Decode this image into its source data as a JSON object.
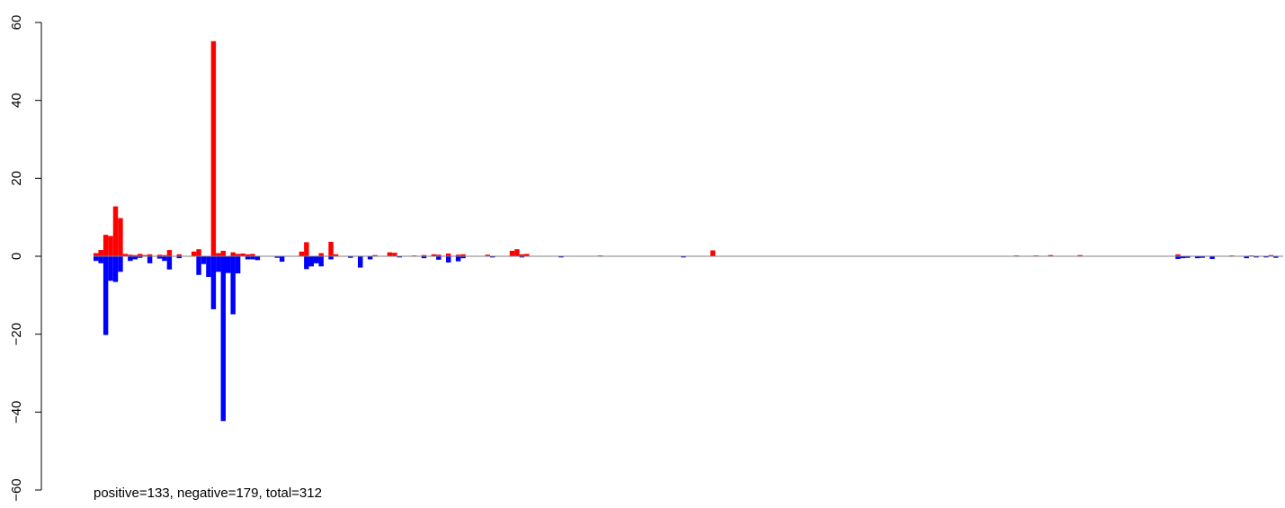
{
  "chart_data": {
    "type": "bar",
    "ylim": [
      -60,
      60
    ],
    "yticks": [
      -60,
      -40,
      -20,
      0,
      20,
      40,
      60
    ],
    "grid": false,
    "colors": {
      "positive": "#ff0000",
      "negative": "#0000ff",
      "baseline": "#808080",
      "axis": "#000000"
    },
    "positive_bars": [
      {
        "x": 1,
        "y": 0.8
      },
      {
        "x": 2,
        "y": 1.6
      },
      {
        "x": 3,
        "y": 5.5
      },
      {
        "x": 4,
        "y": 5.2
      },
      {
        "x": 5,
        "y": 12.8
      },
      {
        "x": 6,
        "y": 9.8
      },
      {
        "x": 7,
        "y": 0.6
      },
      {
        "x": 8,
        "y": 0.4
      },
      {
        "x": 9,
        "y": 0.3
      },
      {
        "x": 10,
        "y": 0.6
      },
      {
        "x": 11,
        "y": 0.3
      },
      {
        "x": 12,
        "y": 0.5
      },
      {
        "x": 14,
        "y": 0.4
      },
      {
        "x": 15,
        "y": 0.3
      },
      {
        "x": 16,
        "y": 1.6
      },
      {
        "x": 18,
        "y": 0.5
      },
      {
        "x": 21,
        "y": 1.2
      },
      {
        "x": 22,
        "y": 1.8
      },
      {
        "x": 25,
        "y": 55.2
      },
      {
        "x": 26,
        "y": 0.8
      },
      {
        "x": 27,
        "y": 1.4
      },
      {
        "x": 29,
        "y": 1.0
      },
      {
        "x": 30,
        "y": 0.6
      },
      {
        "x": 31,
        "y": 0.7
      },
      {
        "x": 32,
        "y": 0.5
      },
      {
        "x": 33,
        "y": 0.6
      },
      {
        "x": 43,
        "y": 1.2
      },
      {
        "x": 44,
        "y": 3.6
      },
      {
        "x": 47,
        "y": 0.8
      },
      {
        "x": 49,
        "y": 3.7
      },
      {
        "x": 50,
        "y": 0.5
      },
      {
        "x": 58,
        "y": 0.3
      },
      {
        "x": 61,
        "y": 1.0
      },
      {
        "x": 62,
        "y": 0.9
      },
      {
        "x": 66,
        "y": 0.2
      },
      {
        "x": 68,
        "y": 0.3
      },
      {
        "x": 70,
        "y": 0.5
      },
      {
        "x": 71,
        "y": 0.4
      },
      {
        "x": 73,
        "y": 0.7
      },
      {
        "x": 75,
        "y": 0.4
      },
      {
        "x": 76,
        "y": 0.5
      },
      {
        "x": 81,
        "y": 0.4
      },
      {
        "x": 86,
        "y": 1.4
      },
      {
        "x": 87,
        "y": 1.8
      },
      {
        "x": 88,
        "y": 0.5
      },
      {
        "x": 89,
        "y": 0.6
      },
      {
        "x": 104,
        "y": 0.2
      },
      {
        "x": 127,
        "y": 1.5
      },
      {
        "x": 189,
        "y": 0.2
      },
      {
        "x": 193,
        "y": 0.2
      },
      {
        "x": 196,
        "y": 0.3
      },
      {
        "x": 202,
        "y": 0.3
      },
      {
        "x": 222,
        "y": 0.5
      },
      {
        "x": 233,
        "y": 0.2
      },
      {
        "x": 237,
        "y": 0.2
      },
      {
        "x": 241,
        "y": 0.3
      }
    ],
    "negative_bars": [
      {
        "x": 1,
        "y": -1.2
      },
      {
        "x": 2,
        "y": -1.8
      },
      {
        "x": 3,
        "y": -20.2
      },
      {
        "x": 4,
        "y": -6.3
      },
      {
        "x": 5,
        "y": -6.6
      },
      {
        "x": 6,
        "y": -4.0
      },
      {
        "x": 8,
        "y": -1.2
      },
      {
        "x": 9,
        "y": -0.8
      },
      {
        "x": 10,
        "y": -0.4
      },
      {
        "x": 12,
        "y": -1.8
      },
      {
        "x": 14,
        "y": -0.6
      },
      {
        "x": 15,
        "y": -1.2
      },
      {
        "x": 16,
        "y": -3.4
      },
      {
        "x": 18,
        "y": -0.5
      },
      {
        "x": 22,
        "y": -4.8
      },
      {
        "x": 23,
        "y": -2.0
      },
      {
        "x": 24,
        "y": -5.3
      },
      {
        "x": 25,
        "y": -13.6
      },
      {
        "x": 26,
        "y": -4.0
      },
      {
        "x": 27,
        "y": -42.3
      },
      {
        "x": 28,
        "y": -4.3
      },
      {
        "x": 29,
        "y": -14.9
      },
      {
        "x": 30,
        "y": -4.4
      },
      {
        "x": 32,
        "y": -0.8
      },
      {
        "x": 33,
        "y": -0.8
      },
      {
        "x": 34,
        "y": -1.0
      },
      {
        "x": 38,
        "y": -0.4
      },
      {
        "x": 39,
        "y": -1.4
      },
      {
        "x": 44,
        "y": -3.3
      },
      {
        "x": 45,
        "y": -2.6
      },
      {
        "x": 46,
        "y": -1.8
      },
      {
        "x": 47,
        "y": -2.6
      },
      {
        "x": 49,
        "y": -0.8
      },
      {
        "x": 53,
        "y": -0.4
      },
      {
        "x": 55,
        "y": -2.9
      },
      {
        "x": 57,
        "y": -0.8
      },
      {
        "x": 63,
        "y": -0.3
      },
      {
        "x": 68,
        "y": -0.5
      },
      {
        "x": 71,
        "y": -0.9
      },
      {
        "x": 73,
        "y": -1.6
      },
      {
        "x": 75,
        "y": -1.3
      },
      {
        "x": 76,
        "y": -0.5
      },
      {
        "x": 82,
        "y": -0.3
      },
      {
        "x": 88,
        "y": -0.3
      },
      {
        "x": 96,
        "y": -0.3
      },
      {
        "x": 121,
        "y": -0.3
      },
      {
        "x": 222,
        "y": -0.7
      },
      {
        "x": 223,
        "y": -0.5
      },
      {
        "x": 224,
        "y": -0.4
      },
      {
        "x": 226,
        "y": -0.5
      },
      {
        "x": 227,
        "y": -0.4
      },
      {
        "x": 229,
        "y": -0.7
      },
      {
        "x": 236,
        "y": -0.5
      },
      {
        "x": 238,
        "y": -0.3
      },
      {
        "x": 240,
        "y": -0.3
      },
      {
        "x": 242,
        "y": -0.4
      }
    ],
    "x_range": [
      0,
      243
    ],
    "annotation": "positive=133, negative=179, total=312"
  }
}
